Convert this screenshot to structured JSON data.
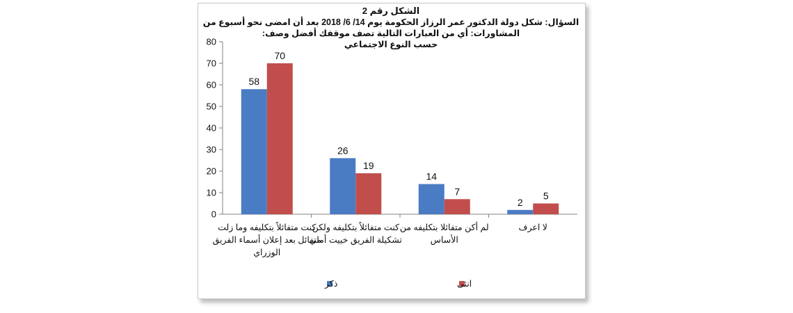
{
  "chart_data": {
    "type": "bar",
    "title_lines": [
      "الشكل رقم 2",
      "السؤال: شكل دولة الدكتور عمر الرزاز الحكومة يوم 14/ 6/ 2018 بعد أن امضى نحو أسبوع من",
      "المشاورات: أي من العبارات التالية تصف موقفك أفضل وصف:",
      "حسب النوع الاجتماعي"
    ],
    "categories": [
      [
        "كنت متفائلاً بتكليفه وما زلت",
        "متفائل بعد إعلان أسماء الفريق",
        "الوزراي"
      ],
      [
        "كنت متفائلاً بتكليفه ولكن",
        "تشكيلة الفريق خييت أملي"
      ],
      [
        "لم أكن متفائلا بتكليفه من",
        "الأساس"
      ],
      [
        "لا اعرف"
      ]
    ],
    "series": [
      {
        "name": "ذكر",
        "color": "#4a7cc4",
        "values": [
          58,
          26,
          14,
          2
        ]
      },
      {
        "name": "انثى",
        "color": "#c14e4c",
        "values": [
          70,
          19,
          7,
          5
        ]
      }
    ],
    "ylim": [
      0,
      80
    ],
    "yticks": [
      0,
      10,
      20,
      30,
      40,
      50,
      60,
      70,
      80
    ],
    "grid": false,
    "legend_position": "bottom"
  }
}
